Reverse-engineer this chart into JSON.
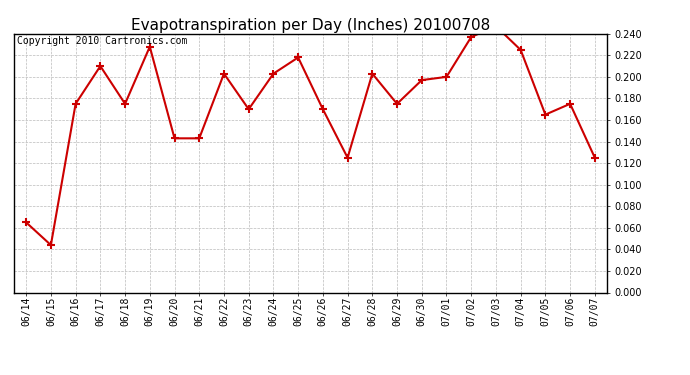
{
  "title": "Evapotranspiration per Day (Inches) 20100708",
  "copyright_text": "Copyright 2010 Cartronics.com",
  "dates": [
    "06/14",
    "06/15",
    "06/16",
    "06/17",
    "06/18",
    "06/19",
    "06/20",
    "06/21",
    "06/22",
    "06/23",
    "06/24",
    "06/25",
    "06/26",
    "06/27",
    "06/28",
    "06/29",
    "06/30",
    "07/01",
    "07/02",
    "07/03",
    "07/04",
    "07/05",
    "07/06",
    "07/07"
  ],
  "values": [
    0.065,
    0.044,
    0.175,
    0.21,
    0.175,
    0.228,
    0.143,
    0.143,
    0.203,
    0.17,
    0.203,
    0.218,
    0.17,
    0.125,
    0.203,
    0.175,
    0.197,
    0.2,
    0.237,
    0.247,
    0.225,
    0.165,
    0.175,
    0.125
  ],
  "line_color": "#cc0000",
  "marker": "+",
  "marker_size": 6,
  "marker_linewidth": 1.5,
  "line_width": 1.5,
  "ylim": [
    0.0,
    0.24
  ],
  "ytick_step": 0.02,
  "bg_color": "#ffffff",
  "grid_color": "#bbbbbb",
  "title_fontsize": 11,
  "copyright_fontsize": 7,
  "tick_fontsize": 7,
  "face_color": "#ffffff"
}
